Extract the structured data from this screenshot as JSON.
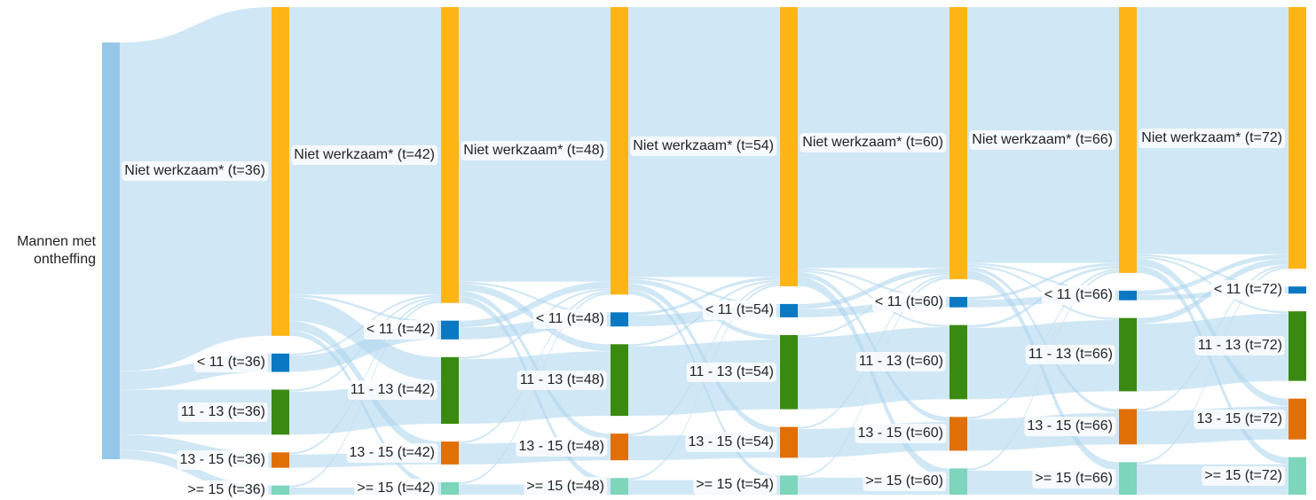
{
  "chart_data": {
    "type": "sankey",
    "link_color": "#a9d3ec",
    "nodes": [
      {
        "label": "Mannen met ontheffing",
        "value": 100,
        "color": "#95c8e8"
      },
      {
        "label": "Niet werkzaam* (t=36)",
        "value": 78.9,
        "color": "#fdb515"
      },
      {
        "label": "< 11 (t=36)",
        "value": 4.4,
        "color": "#0a78c2"
      },
      {
        "label": "11 - 13 (t=36)",
        "value": 10.8,
        "color": "#3a8a12"
      },
      {
        "label": "13 - 15 (t=36)",
        "value": 3.7,
        "color": "#e06f06"
      },
      {
        "label": ">= 15 (t=36)",
        "value": 2.2,
        "color": "#7dd5bb"
      },
      {
        "label": "Niet werkzaam* (t=42)",
        "value": 71,
        "color": "#fdb515"
      },
      {
        "label": "< 11 (t=42)",
        "value": 4.5,
        "color": "#0a78c2"
      },
      {
        "label": "11 - 13 (t=42)",
        "value": 16,
        "color": "#3a8a12"
      },
      {
        "label": "13 - 15 (t=42)",
        "value": 5.5,
        "color": "#e06f06"
      },
      {
        "label": ">= 15 (t=42)",
        "value": 3,
        "color": "#7dd5bb"
      },
      {
        "label": "Niet werkzaam* (t=48)",
        "value": 69,
        "color": "#fdb515"
      },
      {
        "label": "< 11 (t=48)",
        "value": 3.4,
        "color": "#0a78c2"
      },
      {
        "label": "11 - 13 (t=48)",
        "value": 17.2,
        "color": "#3a8a12"
      },
      {
        "label": "13 - 15 (t=48)",
        "value": 6.4,
        "color": "#e06f06"
      },
      {
        "label": ">= 15 (t=48)",
        "value": 4,
        "color": "#7dd5bb"
      },
      {
        "label": "Niet werkzaam* (t=54)",
        "value": 67,
        "color": "#fdb515"
      },
      {
        "label": "< 11 (t=54)",
        "value": 3.2,
        "color": "#0a78c2"
      },
      {
        "label": "11 - 13 (t=54)",
        "value": 17.8,
        "color": "#3a8a12"
      },
      {
        "label": "13 - 15 (t=54)",
        "value": 7.4,
        "color": "#e06f06"
      },
      {
        "label": ">= 15 (t=54)",
        "value": 4.6,
        "color": "#7dd5bb"
      },
      {
        "label": "Niet werkzaam* (t=60)",
        "value": 65.3,
        "color": "#fdb515"
      },
      {
        "label": "< 11 (t=60)",
        "value": 2.5,
        "color": "#0a78c2"
      },
      {
        "label": "11 - 13 (t=60)",
        "value": 17.8,
        "color": "#3a8a12"
      },
      {
        "label": "13 - 15 (t=60)",
        "value": 8.1,
        "color": "#e06f06"
      },
      {
        "label": ">= 15 (t=60)",
        "value": 6.3,
        "color": "#7dd5bb"
      },
      {
        "label": "Niet werkzaam* (t=66)",
        "value": 63.8,
        "color": "#fdb515"
      },
      {
        "label": "< 11 (t=66)",
        "value": 2.3,
        "color": "#0a78c2"
      },
      {
        "label": "11 - 13 (t=66)",
        "value": 17.6,
        "color": "#3a8a12"
      },
      {
        "label": "13 - 15 (t=66)",
        "value": 8.5,
        "color": "#e06f06"
      },
      {
        "label": ">= 15 (t=66)",
        "value": 7.8,
        "color": "#7dd5bb"
      },
      {
        "label": "Niet werkzaam* (t=72)",
        "value": 62.8,
        "color": "#fdb515"
      },
      {
        "label": "< 11 (t=72)",
        "value": 1.7,
        "color": "#0a78c2"
      },
      {
        "label": "11 - 13 (t=72)",
        "value": 16.7,
        "color": "#3a8a12"
      },
      {
        "label": "13 - 15 (t=72)",
        "value": 9.8,
        "color": "#e06f06"
      },
      {
        "label": ">= 15 (t=72)",
        "value": 9,
        "color": "#7dd5bb"
      }
    ],
    "links": [
      {
        "source": 0,
        "target": 1,
        "value": 78.9
      },
      {
        "source": 0,
        "target": 2,
        "value": 4.4
      },
      {
        "source": 0,
        "target": 3,
        "value": 10.8
      },
      {
        "source": 0,
        "target": 4,
        "value": 3.7
      },
      {
        "source": 0,
        "target": 5,
        "value": 2.2
      },
      {
        "source": 1,
        "target": 6,
        "value": 69
      },
      {
        "source": 1,
        "target": 7,
        "value": 0.6
      },
      {
        "source": 1,
        "target": 8,
        "value": 5.7
      },
      {
        "source": 1,
        "target": 9,
        "value": 2.3
      },
      {
        "source": 1,
        "target": 10,
        "value": 1.3
      },
      {
        "source": 2,
        "target": 6,
        "value": 0.5
      },
      {
        "source": 2,
        "target": 7,
        "value": 3.9
      },
      {
        "source": 3,
        "target": 6,
        "value": 0.5
      },
      {
        "source": 3,
        "target": 8,
        "value": 10.3
      },
      {
        "source": 4,
        "target": 6,
        "value": 0.5
      },
      {
        "source": 4,
        "target": 9,
        "value": 3.2
      },
      {
        "source": 5,
        "target": 6,
        "value": 0.5
      },
      {
        "source": 5,
        "target": 10,
        "value": 1.7
      },
      {
        "source": 6,
        "target": 11,
        "value": 65.9
      },
      {
        "source": 6,
        "target": 12,
        "value": 0.5
      },
      {
        "source": 6,
        "target": 13,
        "value": 1.7
      },
      {
        "source": 6,
        "target": 14,
        "value": 1.4
      },
      {
        "source": 6,
        "target": 15,
        "value": 1.5
      },
      {
        "source": 7,
        "target": 11,
        "value": 1.6
      },
      {
        "source": 7,
        "target": 12,
        "value": 2.9
      },
      {
        "source": 8,
        "target": 11,
        "value": 0.5
      },
      {
        "source": 8,
        "target": 13,
        "value": 15.5
      },
      {
        "source": 9,
        "target": 11,
        "value": 0.5
      },
      {
        "source": 9,
        "target": 14,
        "value": 5.0
      },
      {
        "source": 10,
        "target": 11,
        "value": 0.5
      },
      {
        "source": 10,
        "target": 15,
        "value": 2.5
      },
      {
        "source": 11,
        "target": 16,
        "value": 64.8
      },
      {
        "source": 11,
        "target": 17,
        "value": 0.5
      },
      {
        "source": 11,
        "target": 18,
        "value": 1.1
      },
      {
        "source": 11,
        "target": 19,
        "value": 1.5
      },
      {
        "source": 11,
        "target": 20,
        "value": 1.1
      },
      {
        "source": 12,
        "target": 16,
        "value": 0.7
      },
      {
        "source": 12,
        "target": 17,
        "value": 2.7
      },
      {
        "source": 13,
        "target": 16,
        "value": 0.5
      },
      {
        "source": 13,
        "target": 18,
        "value": 16.7
      },
      {
        "source": 14,
        "target": 16,
        "value": 0.5
      },
      {
        "source": 14,
        "target": 19,
        "value": 5.9
      },
      {
        "source": 15,
        "target": 16,
        "value": 0.5
      },
      {
        "source": 15,
        "target": 20,
        "value": 3.5
      },
      {
        "source": 16,
        "target": 21,
        "value": 62.6
      },
      {
        "source": 16,
        "target": 22,
        "value": 0.5
      },
      {
        "source": 16,
        "target": 23,
        "value": 0.5
      },
      {
        "source": 16,
        "target": 24,
        "value": 1.2
      },
      {
        "source": 16,
        "target": 25,
        "value": 2.2
      },
      {
        "source": 17,
        "target": 21,
        "value": 1.2
      },
      {
        "source": 17,
        "target": 22,
        "value": 2.0
      },
      {
        "source": 18,
        "target": 21,
        "value": 0.5
      },
      {
        "source": 18,
        "target": 23,
        "value": 17.3
      },
      {
        "source": 19,
        "target": 21,
        "value": 0.5
      },
      {
        "source": 19,
        "target": 24,
        "value": 6.9
      },
      {
        "source": 20,
        "target": 21,
        "value": 0.5
      },
      {
        "source": 20,
        "target": 25,
        "value": 4.1
      },
      {
        "source": 21,
        "target": 26,
        "value": 61.4
      },
      {
        "source": 21,
        "target": 27,
        "value": 0.5
      },
      {
        "source": 21,
        "target": 28,
        "value": 0.5
      },
      {
        "source": 21,
        "target": 29,
        "value": 0.9
      },
      {
        "source": 21,
        "target": 30,
        "value": 2.0
      },
      {
        "source": 22,
        "target": 26,
        "value": 0.7
      },
      {
        "source": 22,
        "target": 27,
        "value": 1.8
      },
      {
        "source": 23,
        "target": 26,
        "value": 0.7
      },
      {
        "source": 23,
        "target": 28,
        "value": 17.1
      },
      {
        "source": 24,
        "target": 26,
        "value": 0.5
      },
      {
        "source": 24,
        "target": 29,
        "value": 7.6
      },
      {
        "source": 25,
        "target": 26,
        "value": 0.5
      },
      {
        "source": 25,
        "target": 30,
        "value": 5.8
      },
      {
        "source": 26,
        "target": 31,
        "value": 59.3
      },
      {
        "source": 26,
        "target": 32,
        "value": 0.5
      },
      {
        "source": 26,
        "target": 33,
        "value": 0.5
      },
      {
        "source": 26,
        "target": 34,
        "value": 1.8
      },
      {
        "source": 26,
        "target": 35,
        "value": 1.7
      },
      {
        "source": 27,
        "target": 31,
        "value": 1.1
      },
      {
        "source": 27,
        "target": 32,
        "value": 1.2
      },
      {
        "source": 28,
        "target": 31,
        "value": 1.4
      },
      {
        "source": 28,
        "target": 33,
        "value": 16.2
      },
      {
        "source": 29,
        "target": 31,
        "value": 0.5
      },
      {
        "source": 29,
        "target": 34,
        "value": 8.0
      },
      {
        "source": 30,
        "target": 31,
        "value": 0.5
      },
      {
        "source": 30,
        "target": 35,
        "value": 7.3
      }
    ]
  }
}
